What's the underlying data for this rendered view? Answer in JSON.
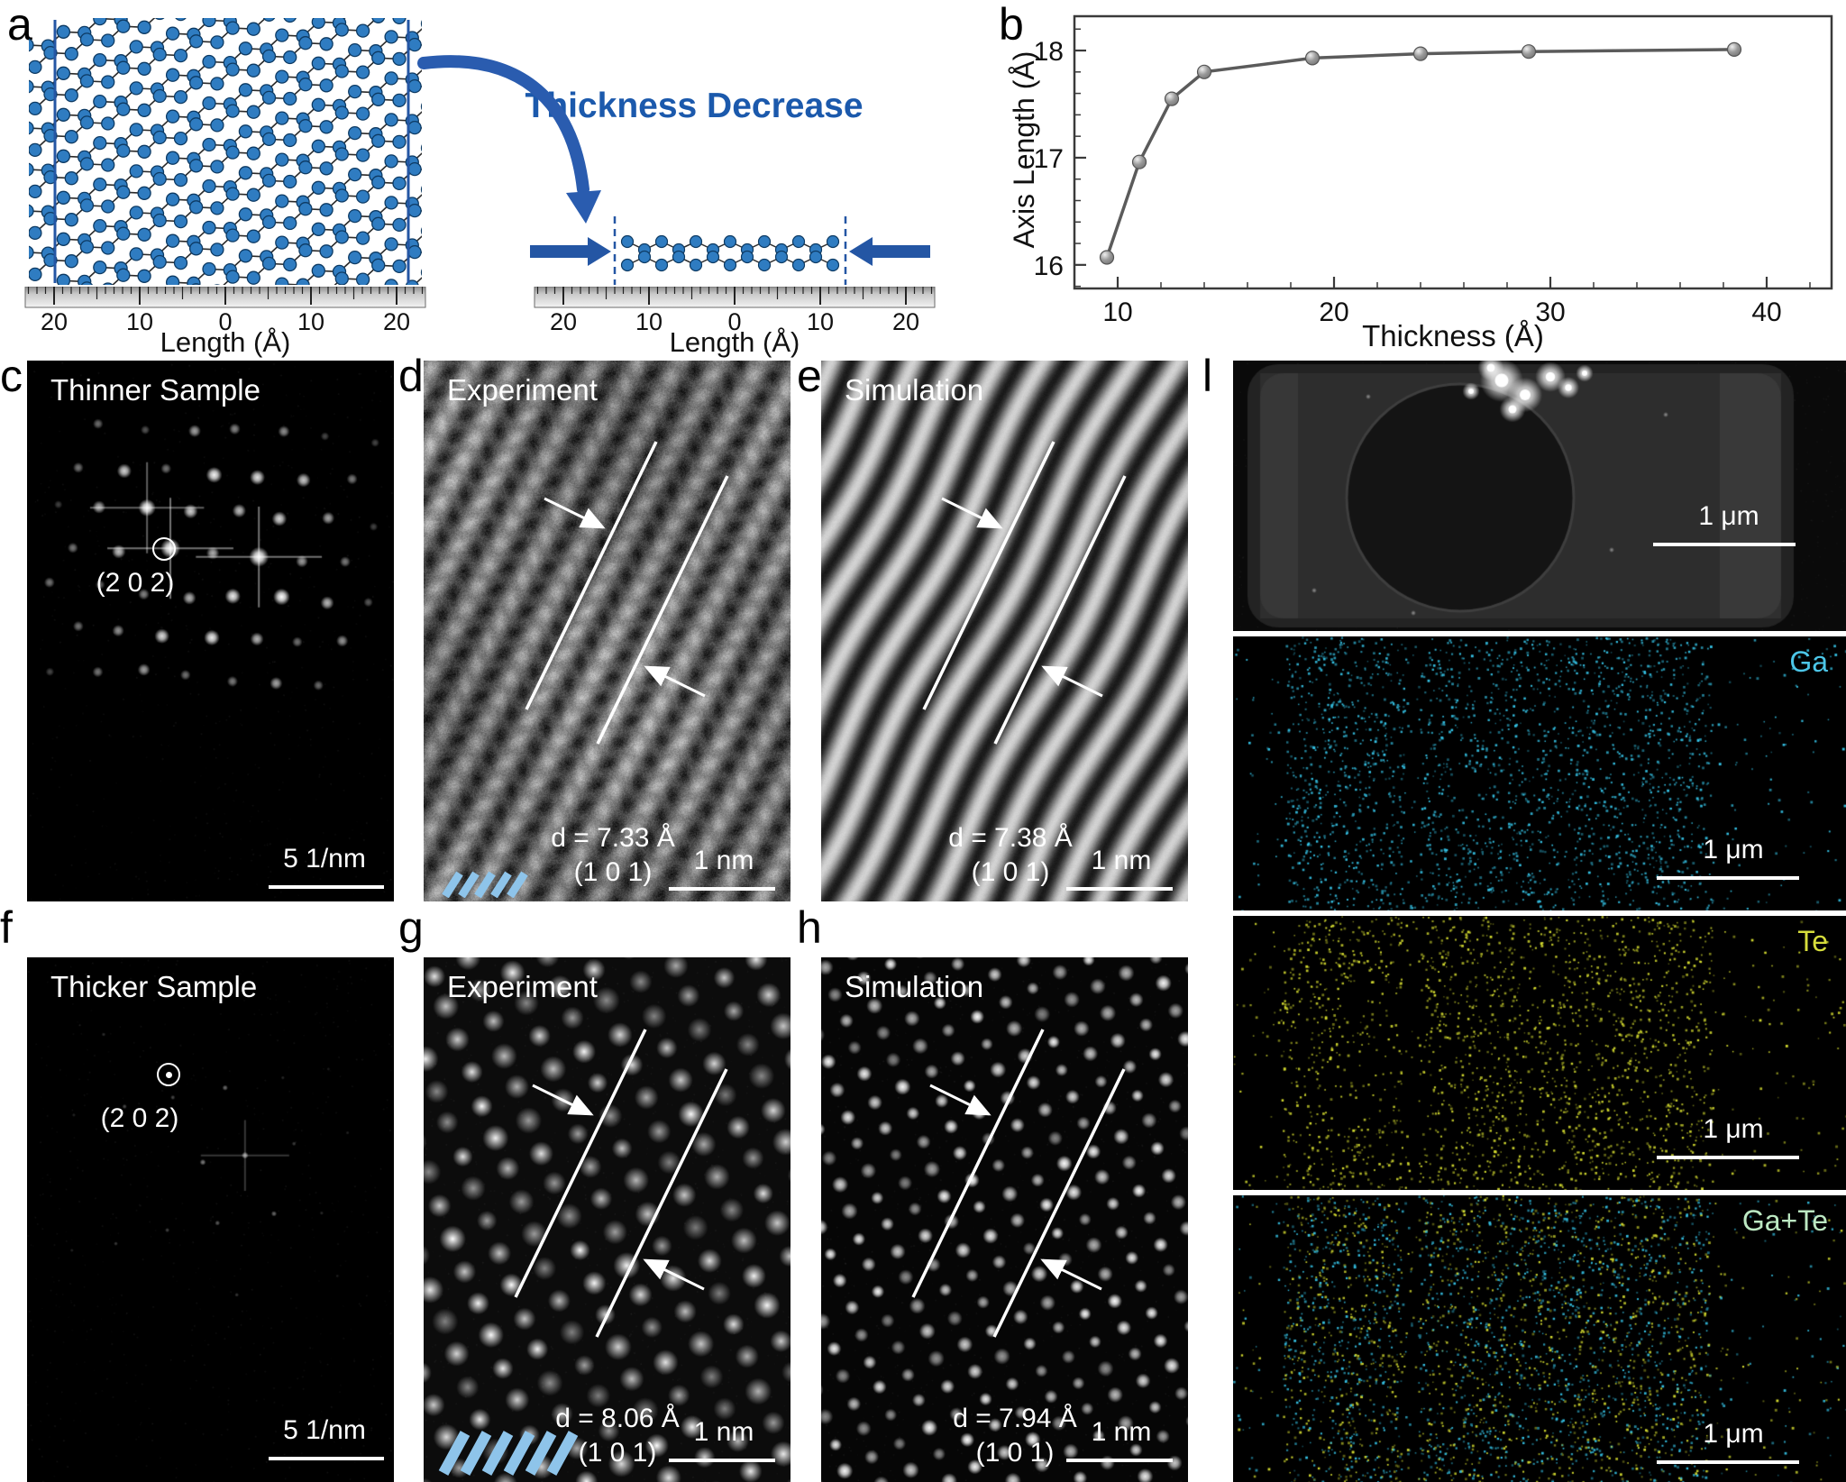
{
  "figure": {
    "panel_labels": {
      "a": "a",
      "b": "b",
      "c": "c",
      "d": "d",
      "e": "e",
      "f": "f",
      "g": "g",
      "h": "h",
      "l": "l"
    }
  },
  "panel_a": {
    "arrow_label": "Thickness Decrease",
    "ruler_left": {
      "tick_labels": [
        "20",
        "10",
        "0",
        "10",
        "20"
      ],
      "axis_label": "Length (Å)"
    },
    "ruler_right": {
      "tick_labels": [
        "20",
        "10",
        "0",
        "10",
        "20"
      ],
      "axis_label": "Length (Å)"
    }
  },
  "chart_data": {
    "type": "line",
    "x": [
      9.5,
      11,
      12.5,
      14,
      19,
      24,
      29,
      38.5
    ],
    "y": [
      16.07,
      16.96,
      17.55,
      17.8,
      17.93,
      17.97,
      17.99,
      18.01
    ],
    "xlabel": "Thickness (Å)",
    "ylabel": "Axis Length (Å)",
    "xticks": [
      10,
      20,
      30,
      40
    ],
    "yticks": [
      16,
      17,
      18
    ],
    "xlim": [
      8,
      43
    ],
    "ylim": [
      15.78,
      18.32
    ],
    "grid": false,
    "legend": null,
    "line_color": "#5b5b5b",
    "marker_color": "#9a9a9a"
  },
  "panel_c": {
    "title": "Thinner Sample",
    "spot_label": "(2 0 2)",
    "scalebar": "5 1/nm"
  },
  "panel_d": {
    "title": "Experiment",
    "d_label": "d = 7.33 Å",
    "plane_label": "(1 0 1)",
    "scalebar": "1 nm"
  },
  "panel_e": {
    "title": "Simulation",
    "d_label": "d = 7.38 Å",
    "plane_label": "(1 0 1)",
    "scalebar": "1 nm"
  },
  "panel_f": {
    "title": "Thicker Sample",
    "spot_label": "(2 0 2)",
    "scalebar": "5 1/nm"
  },
  "panel_g": {
    "title": "Experiment",
    "d_label": "d = 8.06 Å",
    "plane_label": "(1 0 1)",
    "scalebar": "1 nm"
  },
  "panel_h": {
    "title": "Simulation",
    "d_label": "d = 7.94 Å",
    "plane_label": "(1 0 1)",
    "scalebar": "1 nm"
  },
  "panel_l": {
    "maps": [
      {
        "label": "",
        "scalebar": "1 μm",
        "color": "#ffffff"
      },
      {
        "label": "Ga",
        "scalebar": "1 μm",
        "color": "#4cc6e8"
      },
      {
        "label": "Te",
        "scalebar": "1 μm",
        "color": "#d6dd3c"
      },
      {
        "label": "Ga+Te",
        "scalebar": "1 μm",
        "color": "#bce8c2"
      }
    ]
  },
  "colors": {
    "atom_blue": "#2f7cc1",
    "accent_blue": "#2456a4",
    "arrow_blue": "#2a5caf",
    "ga_cyan": "#35c3e6",
    "te_yellow": "#d3da2f"
  }
}
